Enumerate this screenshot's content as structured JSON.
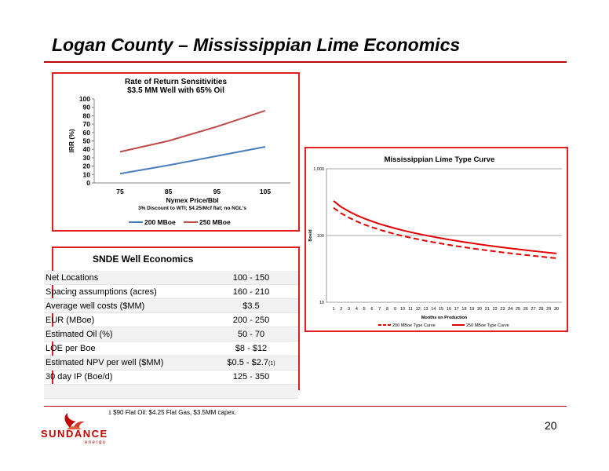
{
  "slide": {
    "title": "Logan County – Mississippian Lime Economics",
    "footnote_marker": "1",
    "footnote": "$90 Flat Oil: $4.25 Flat Gas, $3.5MM capex.",
    "page_number": "20"
  },
  "logo": {
    "wordmark": "SUNDANCE",
    "tagline": "energy",
    "icon": "sun-flame-icon",
    "color": "#c00000"
  },
  "colors": {
    "accent": "#e02020",
    "series_blue": "#4a7ebb",
    "series_red": "#be4b48",
    "type_curve_red": "#e00000"
  },
  "chart_data": [
    {
      "type": "line",
      "title": "Rate of Return Sensitivities",
      "subtitle": "$3.5 MM Well with 65% Oil",
      "xlabel": "Nymex Price/Bbl",
      "xlabel_note": "3% Discount to WTI; $4.25/Mcf flat; no NGL's",
      "ylabel": "IRR (%)",
      "x": [
        75,
        85,
        95,
        105
      ],
      "x_ticks": [
        "75",
        "85",
        "95",
        "105"
      ],
      "ylim": [
        0,
        100
      ],
      "y_ticks": [
        "0",
        "10",
        "20",
        "30",
        "40",
        "50",
        "60",
        "70",
        "80",
        "90",
        "100"
      ],
      "grid": false,
      "legend": "bottom",
      "series": [
        {
          "name": "200 MBoe",
          "color": "#4a7ebb",
          "values": [
            11,
            21,
            32,
            43
          ]
        },
        {
          "name": "250 MBoe",
          "color": "#be4b48",
          "values": [
            37,
            50,
            67,
            86
          ]
        }
      ]
    },
    {
      "type": "line",
      "title": "Mississippian Lime Type Curve",
      "xlabel": "Months on Production",
      "ylabel": "Boe/d",
      "y_scale": "log",
      "ylim": [
        10,
        1000
      ],
      "y_ticks": [
        "10",
        "100",
        "1,000"
      ],
      "x_ticks": [
        "1",
        "2",
        "3",
        "4",
        "5",
        "6",
        "7",
        "8",
        "9",
        "10",
        "11",
        "12",
        "13",
        "14",
        "15",
        "16",
        "17",
        "18",
        "19",
        "20",
        "21",
        "22",
        "23",
        "24",
        "25",
        "26",
        "27",
        "28",
        "29",
        "30"
      ],
      "grid": true,
      "legend": "bottom",
      "series": [
        {
          "name": "200 MBoe Type Curve",
          "style": "dashed",
          "color": "#e00000",
          "values": [
            260,
            215,
            185,
            163,
            146,
            133,
            122,
            113,
            105,
            98.5,
            92.8,
            87.8,
            83.3,
            79.3,
            75.7,
            72.4,
            69.4,
            66.7,
            64.2,
            61.9,
            59.7,
            57.7,
            55.9,
            54.1,
            52.5,
            51.0,
            49.6,
            48.2,
            46.9,
            45.7
          ]
        },
        {
          "name": "250 MBoe Type Curve",
          "style": "solid",
          "color": "#e00000",
          "values": [
            330,
            268,
            230,
            201,
            180,
            163,
            149,
            138,
            128,
            119.5,
            112.4,
            106.1,
            100.5,
            95.5,
            91.0,
            86.9,
            83.2,
            79.8,
            76.7,
            73.8,
            71.1,
            68.6,
            66.3,
            64.2,
            62.2,
            60.3,
            58.5,
            56.9,
            55.3,
            53.8
          ]
        }
      ]
    }
  ],
  "econ": {
    "title": "SNDE Well Economics",
    "rows": [
      {
        "label": "Net Locations",
        "value": "100 - 150"
      },
      {
        "label": "Spacing assumptions (acres)",
        "value": "160 - 210"
      },
      {
        "label": "Average well costs ($MM)",
        "value": "$3.5"
      },
      {
        "label": "EUR (MBoe)",
        "value": "200 - 250"
      },
      {
        "label": "Estimated Oil (%)",
        "value": "50 - 70"
      },
      {
        "label": "LOE per Boe",
        "value": "$8 - $12"
      },
      {
        "label": "Estimated NPV per well ($MM)",
        "value": "$0.5 - $2.7",
        "note": "(1)"
      },
      {
        "label": "30 day IP (Boe/d)",
        "value": "125 - 350"
      },
      {
        "label": "",
        "value": ""
      }
    ]
  }
}
